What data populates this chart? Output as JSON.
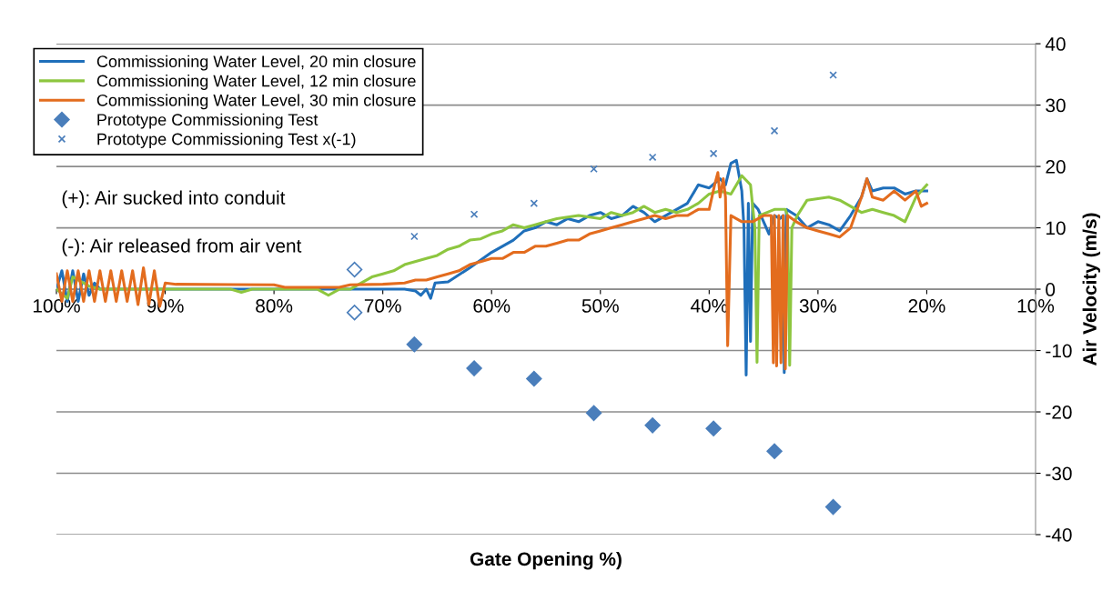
{
  "chart_data": {
    "type": "line",
    "xlabel": "Gate Opening %)",
    "ylabel": "Air Velocity (m/s)",
    "xlim": [
      100,
      10
    ],
    "xticks": [
      {
        "value": 100,
        "label": "100%"
      },
      {
        "value": 90,
        "label": "90%"
      },
      {
        "value": 80,
        "label": "80%"
      },
      {
        "value": 70,
        "label": "70%"
      },
      {
        "value": 60,
        "label": "60%"
      },
      {
        "value": 50,
        "label": "50%"
      },
      {
        "value": 40,
        "label": "40%"
      },
      {
        "value": 30,
        "label": "30%"
      },
      {
        "value": 20,
        "label": "20%"
      },
      {
        "value": 10,
        "label": "10%"
      }
    ],
    "ylim": [
      -40,
      40
    ],
    "yticks": [
      -40,
      -30,
      -20,
      -10,
      0,
      10,
      20,
      30,
      40
    ],
    "grid": "y",
    "legend": "top left",
    "annotations": [
      "(+): Air sucked into conduit",
      "(-): Air released from air vent"
    ],
    "series": [
      {
        "name": "Commissioning Water Level, 20 min closure",
        "color": "#1f6fba",
        "marker": "none",
        "x": [
          100,
          99.5,
          99,
          98.5,
          98,
          97.5,
          97,
          96.5,
          96,
          90,
          80,
          70,
          68,
          67,
          66.5,
          66,
          65.6,
          65.2,
          64,
          62,
          60,
          58,
          57,
          56,
          55,
          54,
          53,
          52,
          51,
          50,
          49,
          48,
          47,
          46,
          45,
          44,
          43,
          42,
          41,
          40,
          39,
          38.5,
          38,
          37.5,
          37,
          36.8,
          36.6,
          36.4,
          36.2,
          36,
          35.5,
          34.5,
          34,
          33.5,
          33.2,
          33.1,
          32.9,
          32,
          31,
          30,
          29,
          28,
          27,
          26,
          25.5,
          25,
          24,
          23,
          22,
          21,
          20
        ],
        "values": [
          0,
          3,
          -2,
          3,
          -2,
          2.5,
          -1,
          1,
          0,
          0,
          0,
          0,
          0,
          -0.3,
          -1,
          0,
          -1.5,
          1,
          1.2,
          3.5,
          6,
          8,
          9.5,
          10,
          11,
          10.5,
          11.5,
          11,
          12,
          12.5,
          11.5,
          12,
          13.5,
          12.5,
          11,
          12,
          13,
          14,
          17,
          16.5,
          18,
          17,
          20.5,
          21,
          16,
          10,
          -14,
          14,
          -8.5,
          14,
          13,
          9,
          12,
          11.5,
          12,
          -13.6,
          13,
          12,
          10,
          11,
          10.5,
          9.5,
          12,
          15,
          18,
          16,
          16.5,
          16.5,
          15.5,
          16,
          16
        ]
      },
      {
        "name": "Commissioning Water Level, 12 min closure",
        "color": "#8dc63f",
        "marker": "none",
        "x": [
          100,
          99,
          98.5,
          98,
          97,
          96,
          90,
          84,
          83,
          82,
          76,
          75,
          74,
          73,
          72,
          71,
          70,
          69,
          68,
          66,
          65,
          64,
          63,
          62,
          61,
          60,
          59,
          58,
          57,
          56,
          55,
          54,
          52,
          50,
          49,
          48,
          47,
          46,
          45,
          44,
          43,
          42,
          41,
          40,
          39,
          38,
          37,
          36.2,
          35.8,
          35.6,
          35.4,
          34,
          33,
          32.8,
          32.6,
          32.4,
          31.9,
          31,
          29,
          28,
          27,
          26,
          25,
          24,
          23,
          22,
          21,
          20
        ],
        "values": [
          0,
          -1.5,
          2,
          1.5,
          0.5,
          0,
          0,
          0,
          -0.5,
          0,
          0,
          -1,
          0,
          0,
          1,
          2,
          2.5,
          3,
          4,
          5,
          5.5,
          6.5,
          7,
          8,
          8.2,
          9,
          9.5,
          10.5,
          10,
          10.5,
          11,
          11.5,
          12,
          11.5,
          12.5,
          12,
          12.5,
          13.5,
          12.5,
          13,
          12.5,
          13,
          14,
          15.5,
          16,
          15.5,
          18.5,
          17,
          10,
          -11.9,
          12,
          13,
          13,
          12,
          -12.4,
          10,
          12,
          14.5,
          15,
          14.5,
          13.5,
          12.5,
          13,
          12.5,
          12,
          11,
          15,
          17
        ]
      },
      {
        "name": "Commissioning Water Level, 30 min closure",
        "color": "#e36c1e",
        "marker": "none",
        "x": [
          100,
          99.5,
          99,
          98.5,
          98,
          97.5,
          97,
          96.5,
          96,
          95.5,
          95,
          94.5,
          94,
          93.5,
          93,
          92.5,
          92,
          91.5,
          91,
          90.5,
          90,
          89,
          80,
          79,
          74,
          73,
          70,
          68,
          67,
          66,
          65,
          64,
          63,
          62,
          61,
          60,
          59,
          58,
          57,
          56,
          55,
          54,
          53,
          52,
          51,
          50,
          49,
          48,
          47,
          46,
          45,
          44,
          43,
          42,
          41,
          40,
          39.5,
          39.2,
          39,
          38.7,
          38.5,
          38.3,
          38,
          37,
          36,
          35,
          34.3,
          34.1,
          34,
          33.8,
          33.6,
          33.4,
          33.2,
          33,
          32.8,
          32,
          31,
          30,
          29,
          28,
          27,
          26,
          25.5,
          25,
          24,
          23,
          22,
          21,
          20.5,
          20
        ],
        "values": [
          2.5,
          -2,
          3,
          -2,
          3,
          -2,
          3,
          -2,
          3,
          -2,
          3,
          -2,
          3,
          -2,
          3,
          -2.5,
          3.5,
          -2.5,
          3,
          -2.8,
          1,
          0.8,
          0.7,
          0.3,
          0.3,
          0.7,
          0.8,
          1,
          1.5,
          1.5,
          2,
          2.5,
          3,
          4,
          4.5,
          5,
          5,
          6,
          6,
          7,
          7,
          7.5,
          8,
          8,
          9,
          9.5,
          10,
          10.5,
          11,
          11.5,
          12,
          11.5,
          12,
          12,
          13,
          13,
          17,
          19,
          15,
          18,
          15,
          -9.2,
          12,
          11,
          11,
          12,
          12,
          -12,
          12,
          -12.5,
          12,
          -12,
          12,
          -13,
          12,
          11,
          10,
          9.5,
          9,
          8.5,
          10,
          15,
          18,
          15,
          14.5,
          16,
          14.5,
          16,
          13.5,
          14
        ]
      },
      {
        "name": "Prototype Commissioning Test",
        "color": "#4a7ebb",
        "type": "scatter",
        "marker": "diamond",
        "x": [
          67.1,
          61.6,
          56.1,
          50.6,
          45.2,
          39.6,
          34.0,
          28.6
        ],
        "values": [
          -9.0,
          -12.9,
          -14.6,
          -20.2,
          -22.2,
          -22.7,
          -26.4,
          -35.5
        ]
      },
      {
        "name": "Prototype Commissioning Test x(-1)",
        "color": "#4a7ebb",
        "type": "scatter",
        "marker": "cross",
        "x": [
          67.1,
          61.6,
          56.1,
          50.6,
          45.2,
          39.6,
          34.0,
          28.6
        ],
        "values": [
          8.6,
          12.2,
          14.0,
          19.6,
          21.5,
          22.1,
          25.8,
          34.9
        ]
      },
      {
        "color": "#4a7ebb",
        "type": "scatter",
        "marker": "diamond",
        "x": [
          72.6,
          72.6
        ],
        "values": [
          3.2,
          -3.8
        ]
      }
    ]
  }
}
